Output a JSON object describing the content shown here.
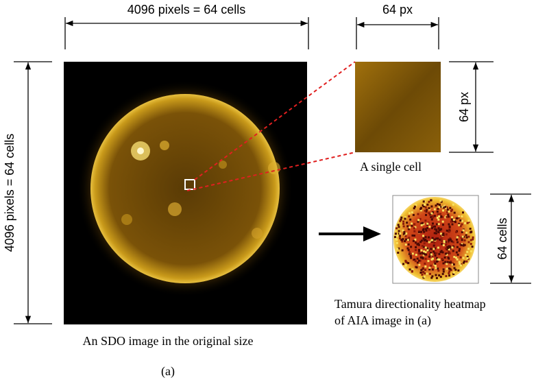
{
  "dimensions": {
    "top_main": "4096 pixels = 64 cells",
    "left_main": "4096 pixels = 64 cells",
    "top_cell": "64 px",
    "right_cell": "64 px",
    "right_heatmap": "64 cells"
  },
  "captions": {
    "cell": "A single cell",
    "heatmap_line1": "Tamura directionality heatmap",
    "heatmap_line2": "of AIA image in (a)",
    "sdo": "An SDO image in the original size",
    "panel": "(a)"
  }
}
